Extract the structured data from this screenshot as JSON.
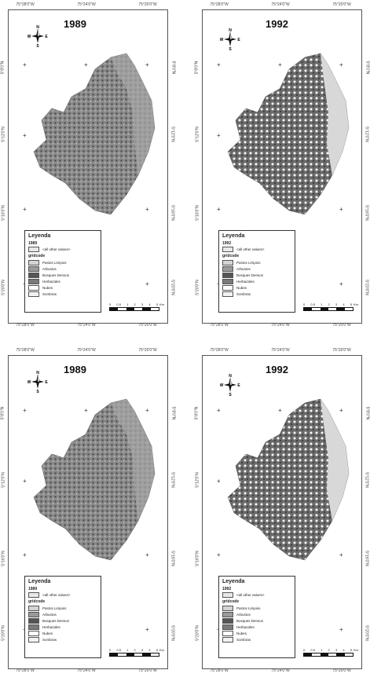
{
  "coords": {
    "top": [
      "75°28'0\"W",
      "75°24'0\"W",
      "75°20'0\"W"
    ],
    "bottom": [
      "75°28'0\"W",
      "75°24'0\"W",
      "75°20'0\"W"
    ],
    "side": [
      "5°8'0\"N",
      "5°12'0\"N",
      "5°16'0\"N",
      "5°20'0\"N"
    ]
  },
  "compass": {
    "n": "N",
    "s": "S",
    "e": "E",
    "w": "W"
  },
  "legend_title": "Leyenda",
  "legend_sub": "gridcode",
  "legend_other": "<all other values>",
  "legend_items": [
    "Pastos Limpios",
    "Arbustos",
    "Bosques Densos",
    "Herbazales",
    "Nubes",
    "Sombras"
  ],
  "legend_colors": [
    "#d4d4d4",
    "#9a9a9a",
    "#555555",
    "#7a7a7a",
    "#ffffff",
    "#f2f2f2"
  ],
  "scale": {
    "ticks": [
      "0",
      "0.5",
      "1",
      "2",
      "3",
      "4",
      "5"
    ],
    "unit": "Km"
  },
  "panels": [
    {
      "year": "1989"
    },
    {
      "year": "1992"
    },
    {
      "year": "1989"
    },
    {
      "year": "1992"
    }
  ]
}
